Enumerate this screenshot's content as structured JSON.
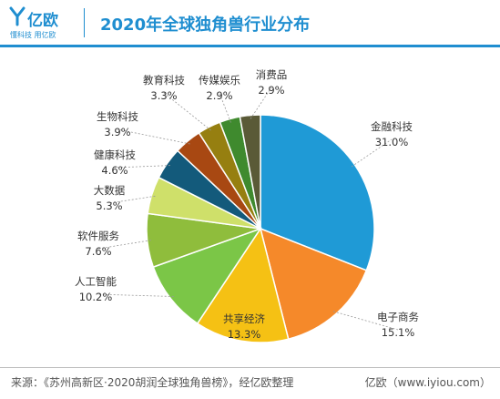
{
  "brand": {
    "name": "亿欧",
    "tagline": "懂科技 用亿欧",
    "color": "#1f8ed0"
  },
  "header": {
    "title": "2020年全球独角兽行业分布"
  },
  "footer": {
    "source": "来源：《苏州高新区·2020胡润全球独角兽榜》，经亿欧整理",
    "credit": "亿欧（www.iyiou.com）"
  },
  "chart_data": {
    "type": "pie",
    "title": "2020年全球独角兽行业分布",
    "unit": "%",
    "slices": [
      {
        "label": "金融科技",
        "value": 31.0,
        "display": "31.0%",
        "color": "#1f9ad6"
      },
      {
        "label": "电子商务",
        "value": 15.1,
        "display": "15.1%",
        "color": "#f5892a"
      },
      {
        "label": "共享经济",
        "value": 13.3,
        "display": "13.3%",
        "color": "#f5c114"
      },
      {
        "label": "人工智能",
        "value": 10.2,
        "display": "10.2%",
        "color": "#7bc647"
      },
      {
        "label": "软件服务",
        "value": 7.6,
        "display": "7.6%",
        "color": "#8fbd3c"
      },
      {
        "label": "大数据",
        "value": 5.3,
        "display": "5.3%",
        "color": "#cfe06a"
      },
      {
        "label": "健康科技",
        "value": 4.6,
        "display": "4.6%",
        "color": "#135a7b"
      },
      {
        "label": "生物科技",
        "value": 3.9,
        "display": "3.9%",
        "color": "#a84812"
      },
      {
        "label": "教育科技",
        "value": 3.3,
        "display": "3.3%",
        "color": "#967f10"
      },
      {
        "label": "传媒娱乐",
        "value": 2.9,
        "display": "2.9%",
        "color": "#3f8a2e"
      },
      {
        "label": "消费品",
        "value": 2.9,
        "display": "2.9%",
        "color": "#5a5a37"
      }
    ]
  }
}
